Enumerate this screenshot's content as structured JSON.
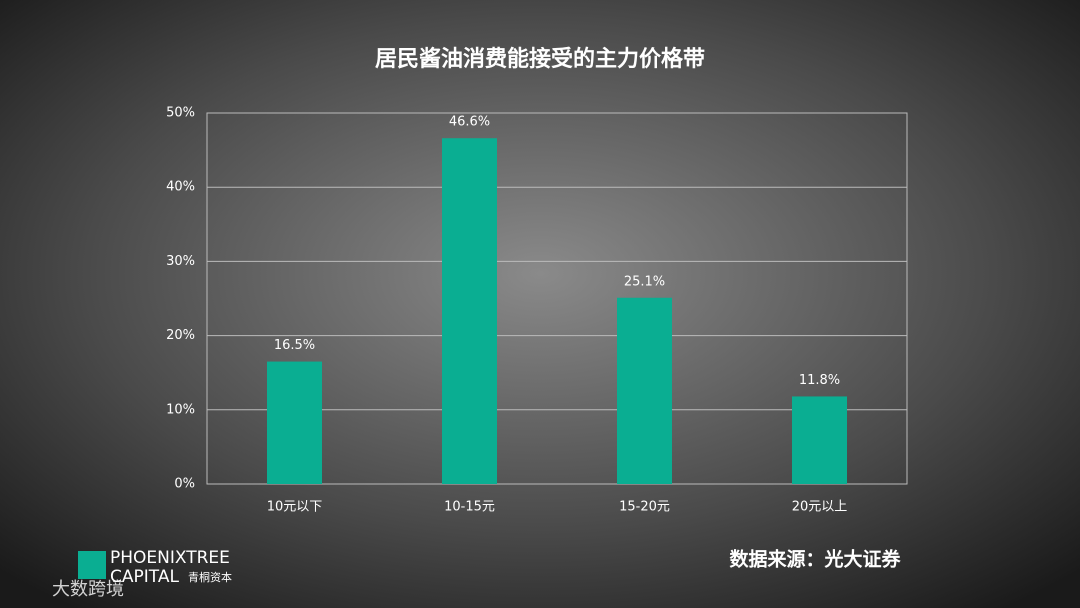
{
  "chart_data": {
    "type": "bar",
    "title": "居民酱油消费能接受的主力价格带",
    "categories": [
      "10元以下",
      "10-15元",
      "15-20元",
      "20元以上"
    ],
    "values": [
      16.5,
      46.6,
      25.1,
      11.8
    ],
    "value_labels": [
      "16.5%",
      "46.6%",
      "25.1%",
      "11.8%"
    ],
    "color": "#0aae92",
    "ylim": [
      0,
      50
    ],
    "yticks": [
      {
        "value": 0,
        "label": "0%"
      },
      {
        "value": 10,
        "label": "10%"
      },
      {
        "value": 20,
        "label": "20%"
      },
      {
        "value": 30,
        "label": "30%"
      },
      {
        "value": 40,
        "label": "40%"
      },
      {
        "value": 50,
        "label": "50%"
      }
    ],
    "grid": true
  },
  "source": "数据来源：光大证券",
  "logo": {
    "name": "PHOENIXTREE",
    "sub": "CAPITAL",
    "cn": "青桐资本"
  },
  "watermark": "大数跨境"
}
